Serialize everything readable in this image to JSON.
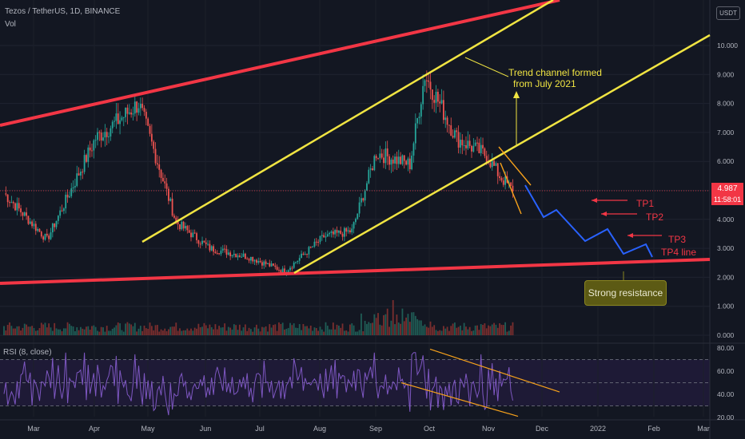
{
  "header": {
    "symbol_line": "Tezos / TetherUS, 1D, BINANCE",
    "vol_label": "Vol",
    "rsi_label": "RSI (8, close)",
    "currency": "USDT"
  },
  "last_price": {
    "price": "4.987",
    "countdown": "11:58:01"
  },
  "annotations": {
    "channel_note_1": "Trend channel formed",
    "channel_note_2": "from July 2021",
    "tp1": "TP1",
    "tp2": "TP2",
    "tp3": "TP3",
    "tp4": "TP4 line",
    "resistance": "Strong resistance"
  },
  "colors": {
    "background": "#131722",
    "bull": "#26a69a",
    "bear": "#ef5350",
    "channel": "#f0e442",
    "red_line": "#f23645",
    "projection": "#2962ff",
    "rsi": "#7e57c2",
    "rsi_channel": "#f7a21b",
    "note_text": "#f0e442",
    "tp_text": "#f23645"
  },
  "chart_data": {
    "type": "candlestick",
    "x_axis_labels": [
      "Mar",
      "Apr",
      "May",
      "Jun",
      "Jul",
      "Aug",
      "Sep",
      "Oct",
      "Nov",
      "Dec",
      "2022",
      "Feb",
      "Mar"
    ],
    "price_axis": {
      "ticks": [
        "10.000",
        "9.000",
        "8.000",
        "7.000",
        "6.000",
        "5.000",
        "4.000",
        "3.000",
        "2.000",
        "1.000",
        "0.000"
      ],
      "range": [
        0,
        10.5
      ]
    },
    "rsi_axis": {
      "ticks": [
        "80.00",
        "60.00",
        "40.00",
        "20.00"
      ],
      "range": [
        20,
        80
      ]
    },
    "anchor_prices": {
      "x": [
        "Feb 20",
        "Mar 15",
        "Apr 10",
        "Apr 20",
        "May 3",
        "May 12",
        "May 23",
        "Jun 10",
        "Jul 1",
        "Jul 20",
        "Aug 10",
        "Aug 25",
        "Sep 7",
        "Sep 25",
        "Oct 3",
        "Oct 20",
        "Nov 5",
        "Nov 12",
        "Nov 19"
      ],
      "close": [
        4.9,
        3.3,
        6.8,
        7.3,
        8.0,
        6.2,
        3.9,
        3.0,
        2.7,
        2.2,
        3.4,
        3.6,
        6.3,
        5.9,
        9.0,
        6.8,
        6.2,
        5.5,
        4.99
      ]
    },
    "last_price": 4.987,
    "projection_path": [
      [
        5.0,
        4.9
      ],
      [
        4.0,
        4.4
      ],
      [
        4.3,
        3.7
      ],
      [
        3.5,
        4.1
      ],
      [
        2.9,
        3.1
      ],
      [
        2.8,
        2.9
      ]
    ],
    "lines": {
      "red_upper": [
        [
          2.0,
          7.5
        ],
        [
          12.0,
          13.5
        ]
      ],
      "red_lower": [
        [
          0.0,
          1.75
        ],
        [
          13.0,
          2.55
        ]
      ],
      "yellow_upper": [
        [
          1.5,
          3.2
        ],
        [
          10.0,
          9.3
        ]
      ],
      "yellow_lower": [
        [
          4.5,
          2.1
        ],
        [
          14.0,
          10.3
        ]
      ]
    }
  }
}
